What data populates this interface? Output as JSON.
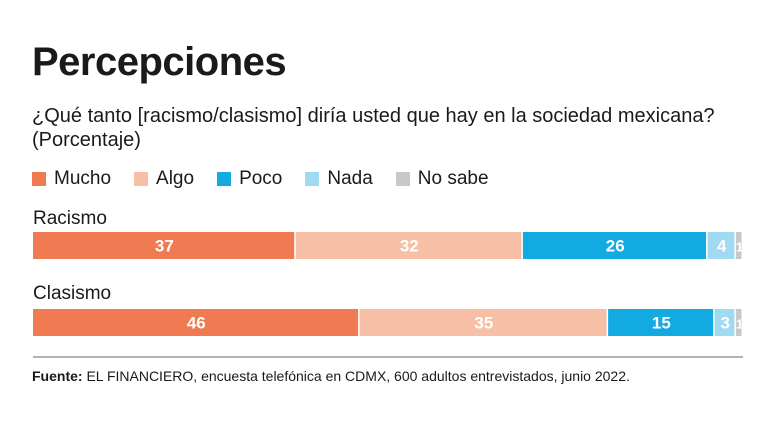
{
  "title": "Percepciones",
  "subtitle": "¿Qué tanto [racismo/clasismo] diría usted que hay en la sociedad mexicana? (Porcentaje)",
  "source": {
    "label": "Fuente:",
    "text": " EL FINANCIERO, encuesta telefónica en CDMX, 600 adultos entrevistados, junio 2022."
  },
  "chart_data": {
    "type": "bar",
    "orientation": "horizontal",
    "stacked": true,
    "categories": [
      "Racismo",
      "Clasismo"
    ],
    "series": [
      {
        "name": "Mucho",
        "color": "#f07a52",
        "values": [
          37,
          46
        ]
      },
      {
        "name": "Algo",
        "color": "#f7c0a6",
        "values": [
          32,
          35
        ]
      },
      {
        "name": "Poco",
        "color": "#13a9e1",
        "values": [
          26,
          15
        ]
      },
      {
        "name": "Nada",
        "color": "#9fd9f2",
        "values": [
          4,
          3
        ]
      },
      {
        "name": "No sabe",
        "color": "#c8c8c8",
        "values": [
          1,
          1
        ]
      }
    ],
    "xlim": [
      0,
      100
    ],
    "legend": "top"
  }
}
